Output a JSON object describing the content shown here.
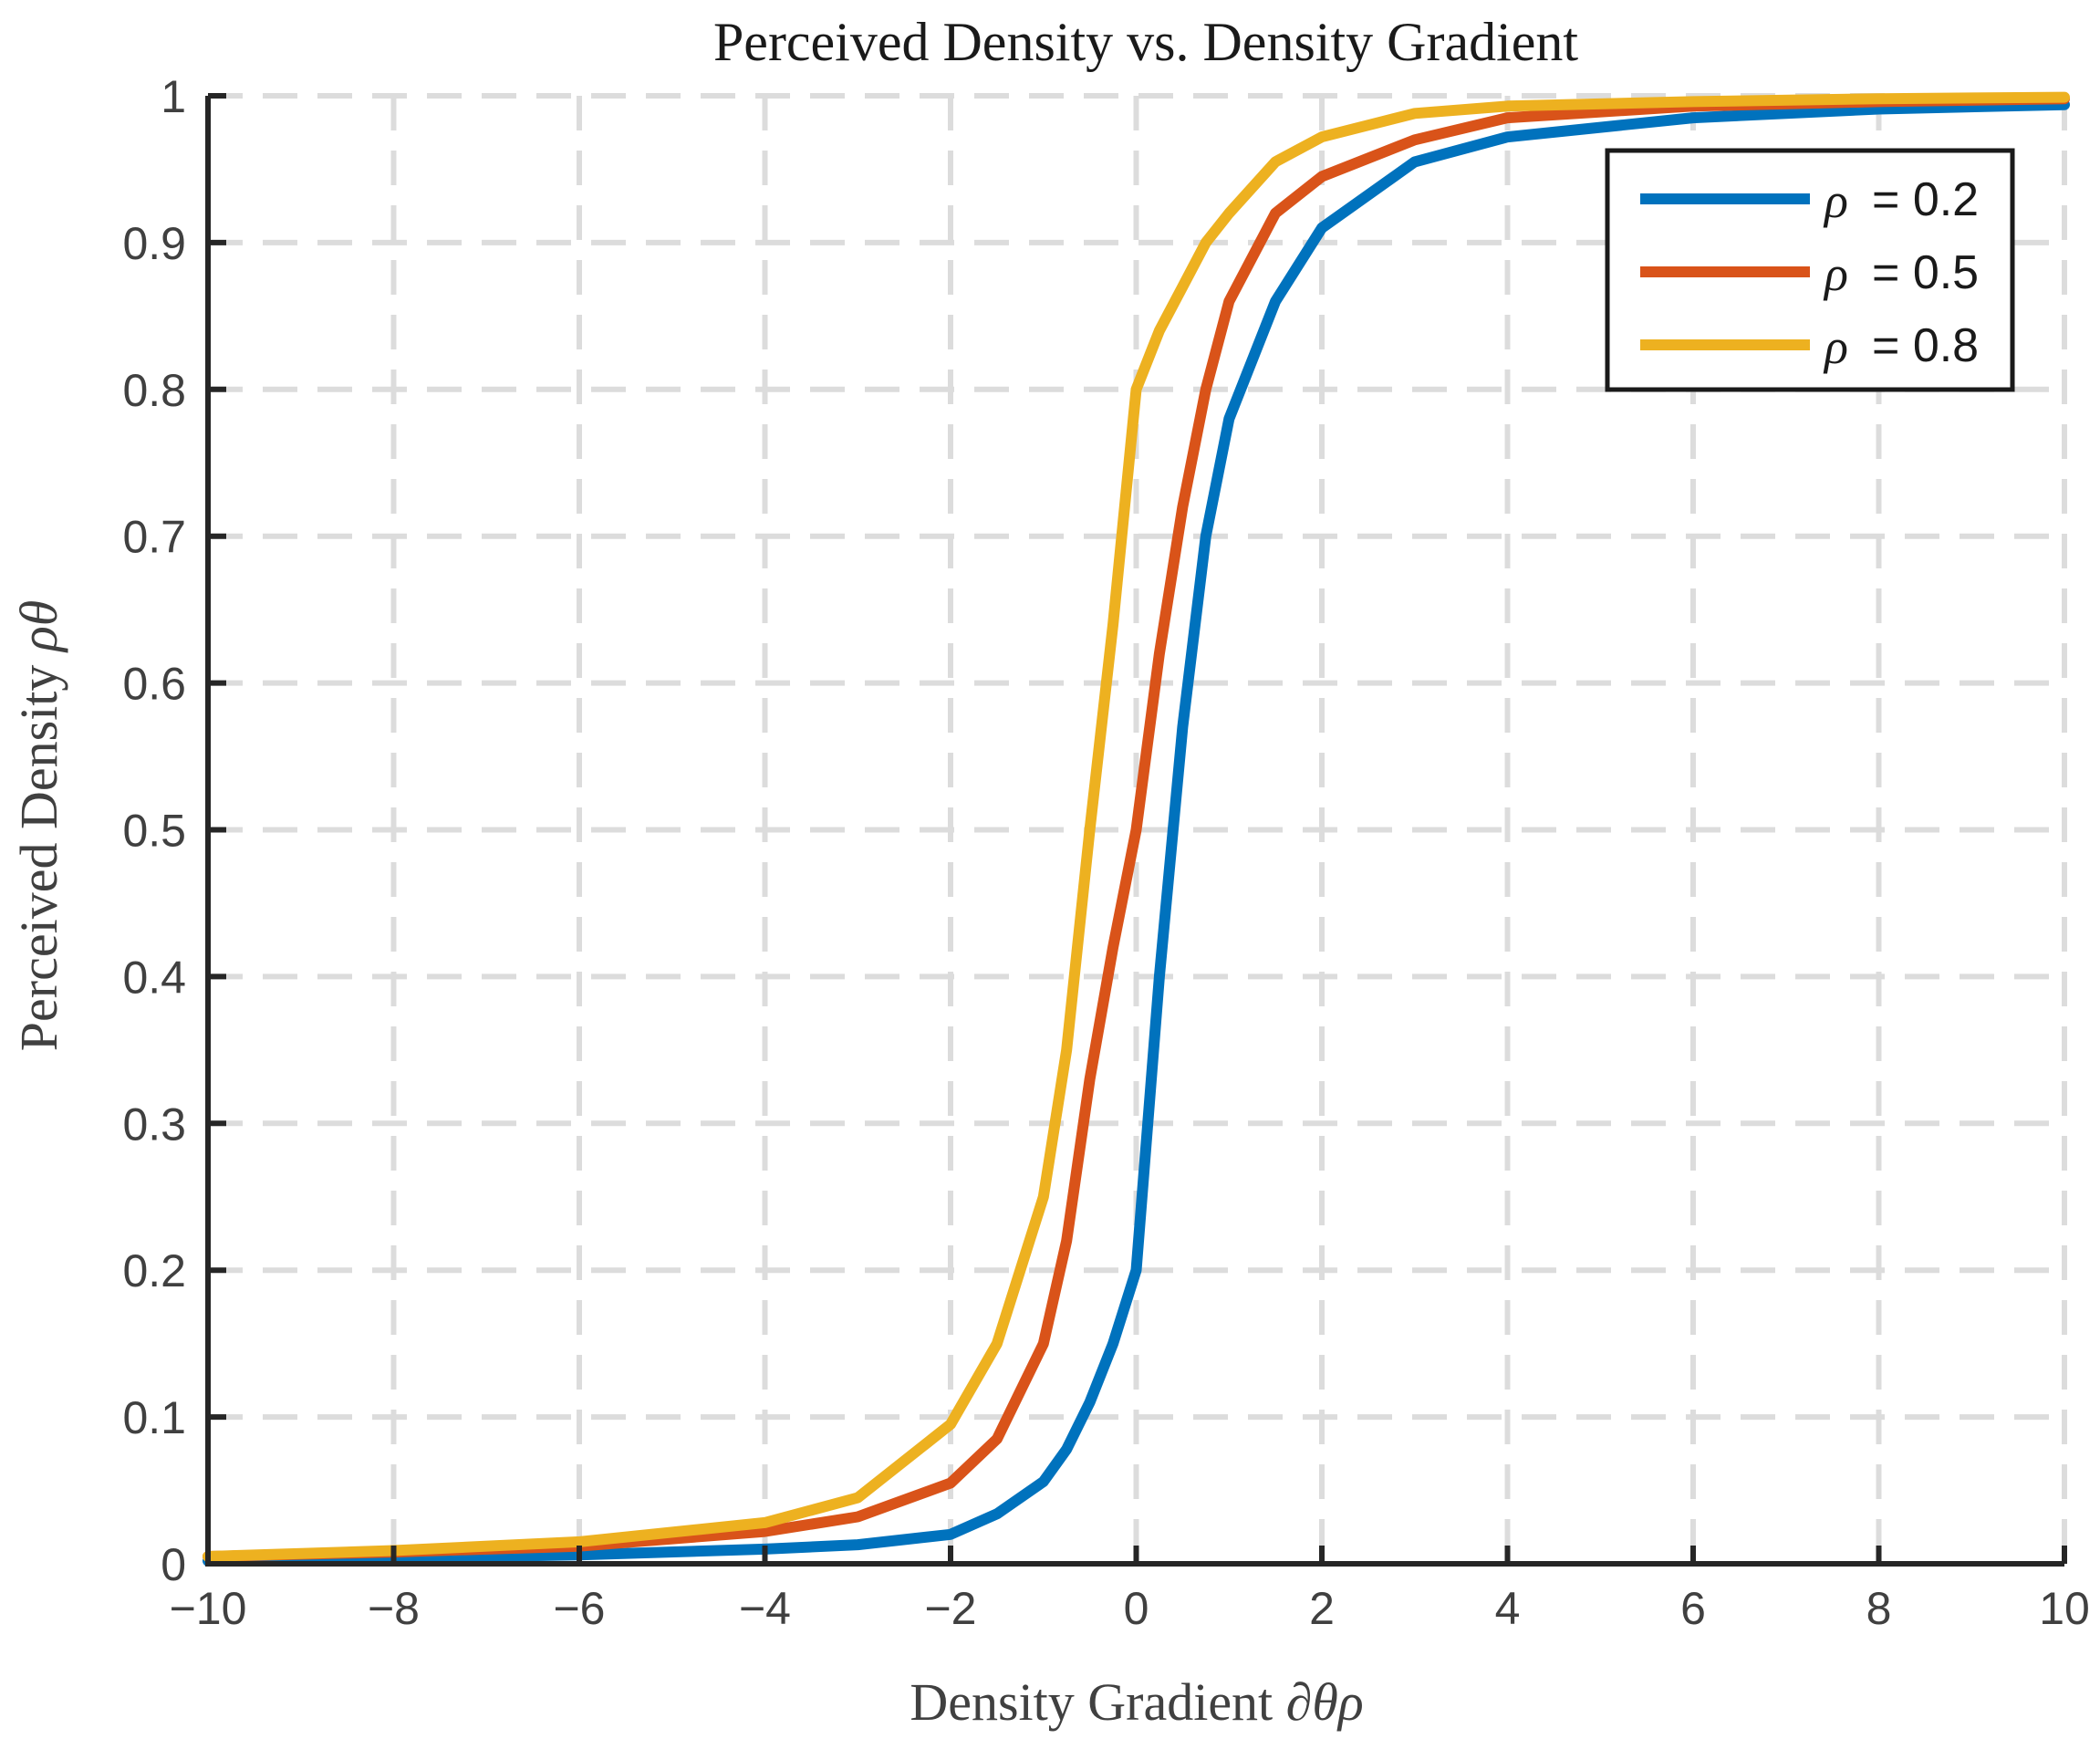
{
  "chart_data": {
    "type": "line",
    "title": "Perceived Density vs. Density Gradient",
    "xlabel_text": "Density Gradient ",
    "xlabel_math": "∂θρ",
    "ylabel_text": "Perceived Density ",
    "ylabel_math": "ρθ",
    "xlim": [
      -10,
      10
    ],
    "ylim": [
      0,
      1
    ],
    "grid": true,
    "grid_style": "dashed",
    "legend_position": "top-right",
    "x_ticks": [
      -10,
      -8,
      -6,
      -4,
      -2,
      0,
      2,
      4,
      6,
      8,
      10
    ],
    "x_tick_labels": [
      "−10",
      "−8",
      "−6",
      "−4",
      "−2",
      "0",
      "2",
      "4",
      "6",
      "8",
      "10"
    ],
    "y_ticks": [
      0,
      0.1,
      0.2,
      0.3,
      0.4,
      0.5,
      0.6,
      0.7,
      0.8,
      0.9,
      1
    ],
    "y_tick_labels": [
      "0",
      "0.1",
      "0.2",
      "0.3",
      "0.4",
      "0.5",
      "0.6",
      "0.7",
      "0.8",
      "0.9",
      "1"
    ],
    "x": [
      -10,
      -8,
      -6,
      -4,
      -3,
      -2,
      -1.5,
      -1,
      -0.75,
      -0.5,
      -0.25,
      0,
      0.25,
      0.5,
      0.75,
      1,
      1.5,
      2,
      3,
      4,
      6,
      8,
      10
    ],
    "series": [
      {
        "name": "ρ = 0.2",
        "legend_symbol": "ρ",
        "legend_value": "= 0.2",
        "color": "#0072BD",
        "values": [
          0.002,
          0.004,
          0.006,
          0.01,
          0.013,
          0.02,
          0.034,
          0.056,
          0.078,
          0.11,
          0.15,
          0.2,
          0.4,
          0.57,
          0.7,
          0.78,
          0.86,
          0.91,
          0.955,
          0.972,
          0.985,
          0.991,
          0.994
        ]
      },
      {
        "name": "ρ = 0.5",
        "legend_symbol": "ρ",
        "legend_value": "= 0.5",
        "color": "#D95319",
        "values": [
          0.005,
          0.008,
          0.012,
          0.022,
          0.032,
          0.055,
          0.085,
          0.15,
          0.22,
          0.33,
          0.42,
          0.5,
          0.62,
          0.72,
          0.8,
          0.86,
          0.92,
          0.945,
          0.97,
          0.985,
          0.993,
          0.996,
          0.998
        ]
      },
      {
        "name": "ρ = 0.8",
        "legend_symbol": "ρ",
        "legend_value": "= 0.8",
        "color": "#EDB120",
        "values": [
          0.005,
          0.009,
          0.015,
          0.028,
          0.045,
          0.095,
          0.15,
          0.25,
          0.35,
          0.5,
          0.64,
          0.8,
          0.84,
          0.87,
          0.9,
          0.92,
          0.955,
          0.972,
          0.988,
          0.993,
          0.996,
          0.998,
          0.999
        ]
      }
    ]
  }
}
